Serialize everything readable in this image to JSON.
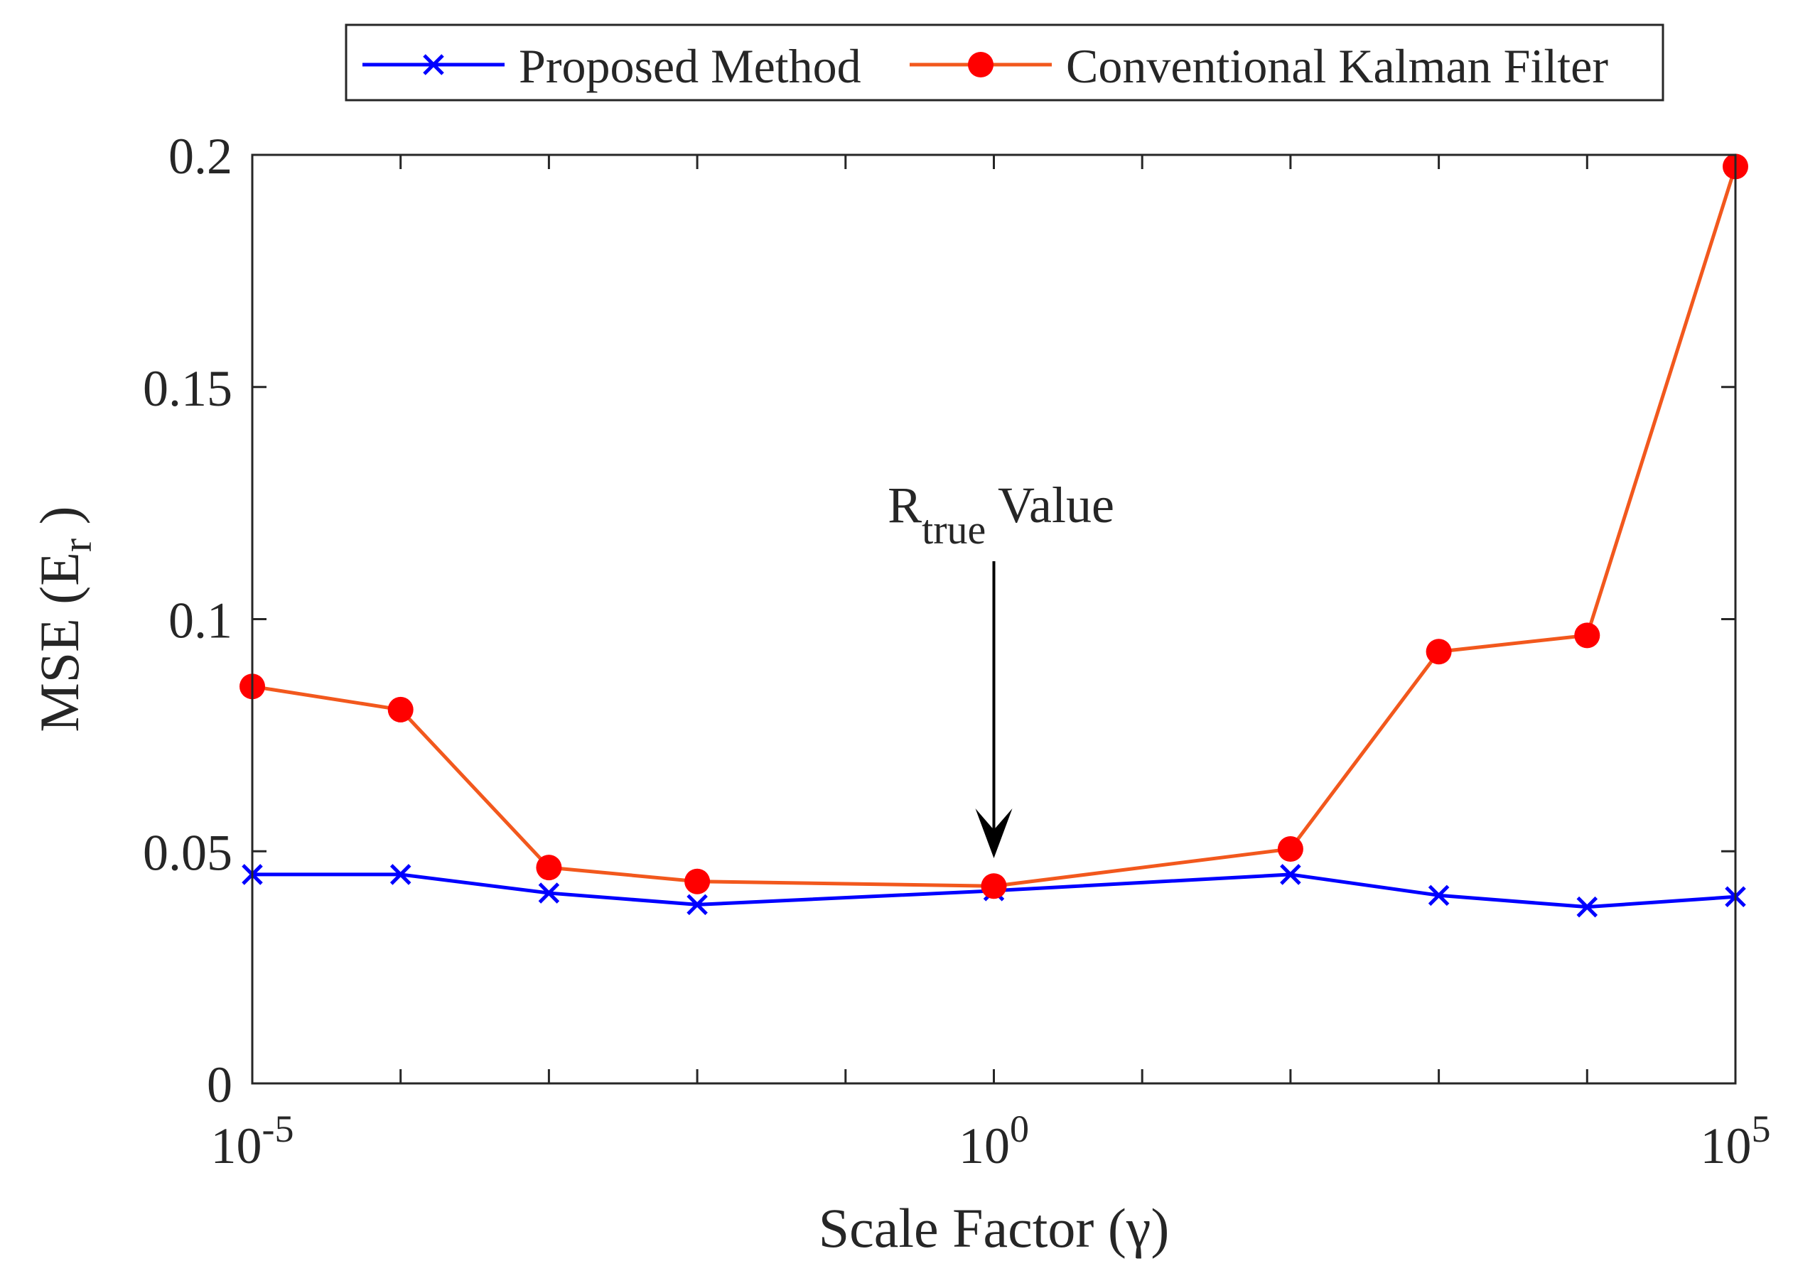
{
  "chart_data": {
    "type": "line",
    "title": "",
    "xlabel": "Scale Factor (γ)",
    "ylabel_main": "MSE (E",
    "ylabel_sub": "r",
    "ylabel_end": " )",
    "xscale": "log",
    "xlim": [
      1e-05,
      100000
    ],
    "ylim": [
      0,
      0.2
    ],
    "x_ticks": [
      {
        "value": 1e-05,
        "base": "10",
        "exp": "-5"
      },
      {
        "value": 1,
        "base": "10",
        "exp": "0"
      },
      {
        "value": 100000,
        "base": "10",
        "exp": "5"
      }
    ],
    "x_minor_ticks": [
      0.0001,
      0.001,
      0.01,
      0.1,
      10,
      100,
      1000,
      10000
    ],
    "y_ticks": [
      {
        "value": 0,
        "label": "0"
      },
      {
        "value": 0.05,
        "label": "0.05"
      },
      {
        "value": 0.1,
        "label": "0.1"
      },
      {
        "value": 0.15,
        "label": "0.15"
      },
      {
        "value": 0.2,
        "label": "0.2"
      }
    ],
    "grid": false,
    "legend_position": "top, outside plot, horizontal",
    "x": [
      1e-05,
      0.0001,
      0.001,
      0.01,
      1,
      100,
      1000,
      10000,
      100000
    ],
    "series": [
      {
        "name": "Proposed Method",
        "color": "#0000ff",
        "marker": "x",
        "values": [
          0.045,
          0.045,
          0.041,
          0.0385,
          0.0415,
          0.045,
          0.0405,
          0.038,
          0.0402
        ]
      },
      {
        "name": "Conventional Kalman Filter",
        "color": "#f2581d",
        "marker_color": "#ff0000",
        "marker": "o",
        "values": [
          0.0855,
          0.0805,
          0.0465,
          0.0435,
          0.0425,
          0.0505,
          0.093,
          0.0965,
          0.1975
        ]
      }
    ],
    "annotation": {
      "main": "R",
      "sub": "true",
      "rest": " Value",
      "arrow_to_x": 1,
      "arrow_to_y": 0.0485
    }
  }
}
